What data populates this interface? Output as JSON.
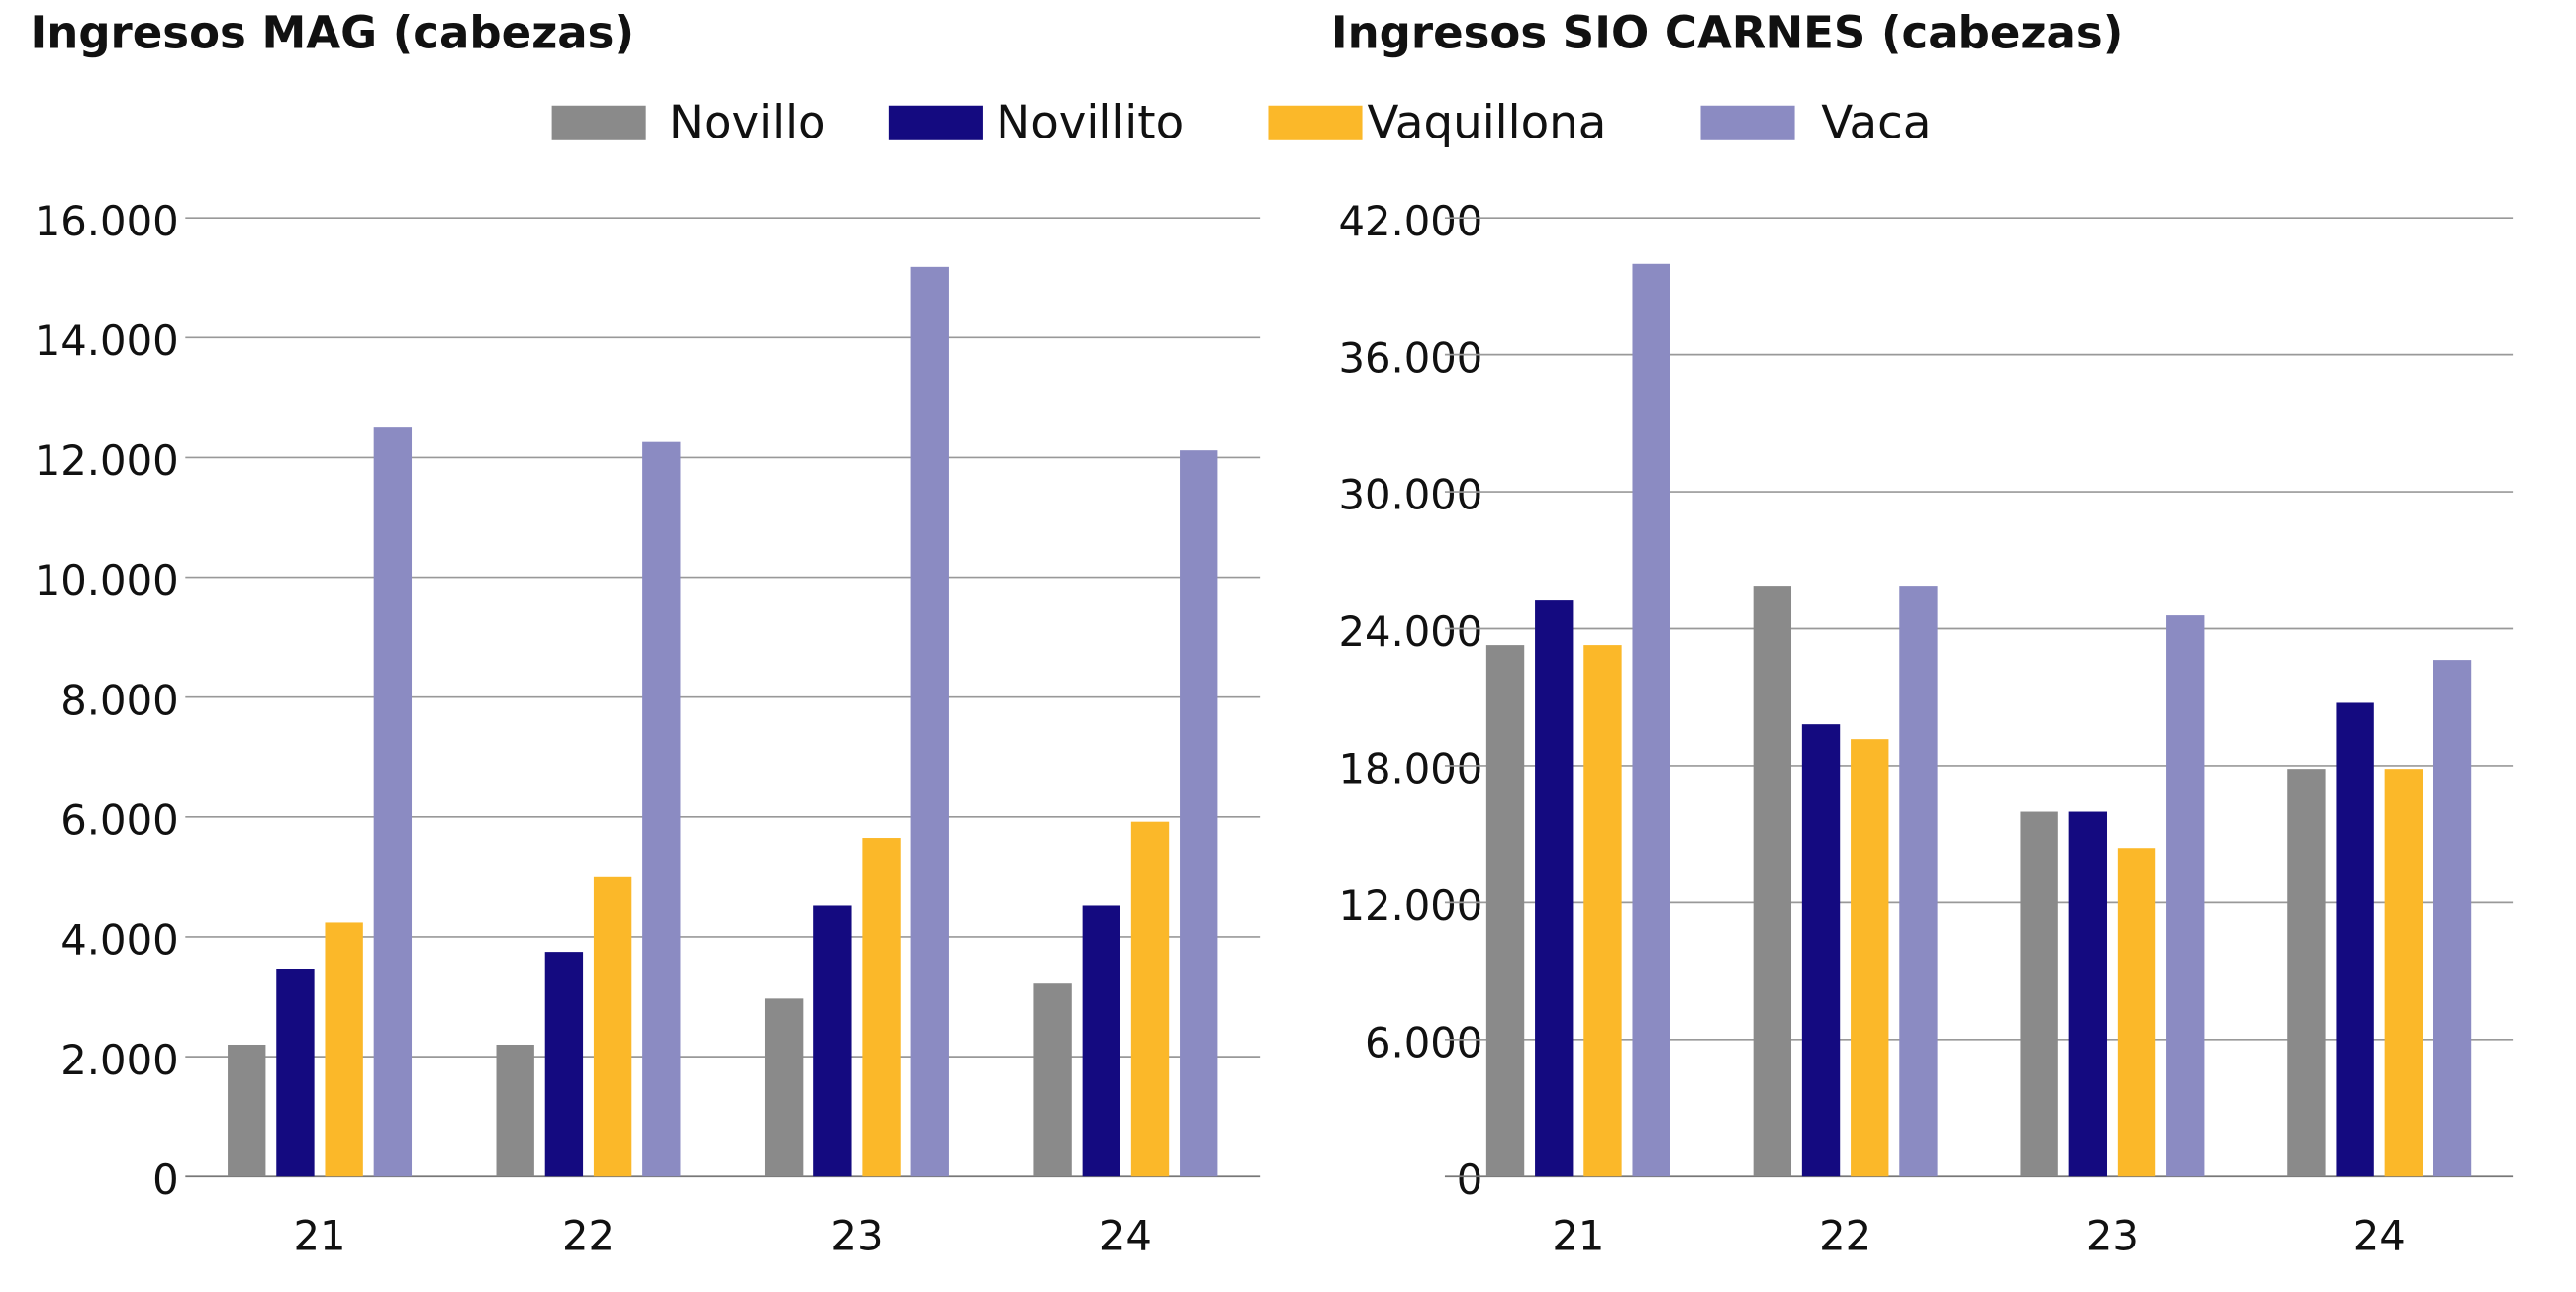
{
  "chart_data": [
    {
      "type": "bar",
      "title": "Ingresos MAG (cabezas)",
      "categories": [
        "21",
        "22",
        "23",
        "24"
      ],
      "series": [
        {
          "name": "Novillo",
          "color": "#8a8a8a",
          "values": [
            2200,
            2200,
            2970,
            3220
          ]
        },
        {
          "name": "Novillito",
          "color": "#140a80",
          "values": [
            3470,
            3750,
            4520,
            4520
          ]
        },
        {
          "name": "Vaquillona",
          "color": "#fbb829",
          "values": [
            4240,
            5010,
            5650,
            5920
          ]
        },
        {
          "name": "Vaca",
          "color": "#8b8bc2",
          "values": [
            12500,
            12260,
            15180,
            12120
          ]
        }
      ],
      "ylim": [
        0,
        16000
      ],
      "yticks": [
        0,
        {
          "value": 2000,
          "label": "2.000"
        },
        {
          "value": 4000,
          "label": "4.000"
        },
        {
          "value": 6000,
          "label": "6.000"
        },
        {
          "value": 8000,
          "label": "8.000"
        },
        {
          "value": 10000,
          "label": "10.000"
        },
        {
          "value": 12000,
          "label": "12.000"
        },
        {
          "value": 14000,
          "label": "14.000"
        },
        {
          "value": 16000,
          "label": "16.000"
        }
      ],
      "grid": true
    },
    {
      "type": "bar",
      "title": "Ingresos SIO CARNES (cabezas)",
      "categories": [
        "21",
        "22",
        "23",
        "24"
      ],
      "series": [
        {
          "name": "Novillo",
          "color": "#8a8a8a",
          "values": [
            23280,
            25880,
            15980,
            17860
          ]
        },
        {
          "name": "Novillito",
          "color": "#140a80",
          "values": [
            25230,
            19810,
            15980,
            20750
          ]
        },
        {
          "name": "Vaquillona",
          "color": "#fbb829",
          "values": [
            23280,
            19160,
            14390,
            17860
          ]
        },
        {
          "name": "Vaca",
          "color": "#8b8bc2",
          "values": [
            39980,
            25880,
            24580,
            22630
          ]
        }
      ],
      "ylim": [
        0,
        42000
      ],
      "yticks": [
        0,
        {
          "value": 6000,
          "label": "6.000"
        },
        {
          "value": 12000,
          "label": "12.000"
        },
        {
          "value": 18000,
          "label": "18.000"
        },
        {
          "value": 24000,
          "label": "24.000"
        },
        {
          "value": 30000,
          "label": "30.000"
        },
        {
          "value": 36000,
          "label": "36.000"
        },
        {
          "value": 42000,
          "label": "42.000"
        }
      ],
      "grid": true
    }
  ]
}
